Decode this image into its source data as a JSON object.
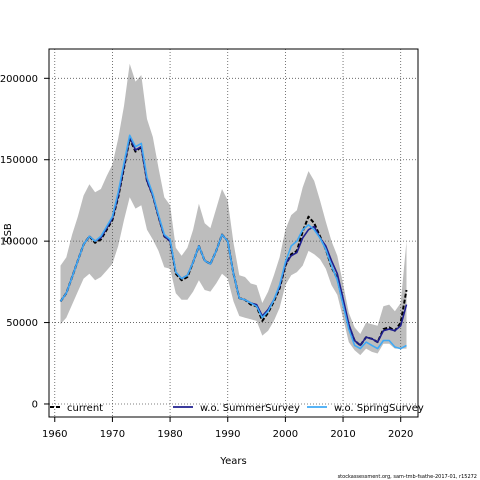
{
  "chart_data": {
    "type": "line",
    "title": "",
    "xlabel": "Years",
    "ylabel": "SSB",
    "xlim": [
      1959,
      2023
    ],
    "ylim": [
      -8000,
      218000
    ],
    "x_ticks": [
      1960,
      1970,
      1980,
      1990,
      2000,
      2010,
      2020
    ],
    "y_ticks": [
      0,
      50000,
      100000,
      150000,
      200000
    ],
    "grid": true,
    "legend_position": "bottom",
    "colors": {
      "current": "#000000",
      "summer": "#1f1f8f",
      "spring": "#3fa9f5",
      "band": "#bdbdbd"
    },
    "series": [
      {
        "name": "current",
        "style": "dashed",
        "x": [
          1961,
          1962,
          1963,
          1964,
          1965,
          1966,
          1967,
          1968,
          1969,
          1970,
          1971,
          1972,
          1973,
          1974,
          1975,
          1976,
          1977,
          1978,
          1979,
          1980,
          1981,
          1982,
          1983,
          1984,
          1985,
          1986,
          1987,
          1988,
          1989,
          1990,
          1991,
          1992,
          1993,
          1994,
          1995,
          1996,
          1997,
          1998,
          1999,
          2000,
          2001,
          2002,
          2003,
          2004,
          2005,
          2006,
          2007,
          2008,
          2009,
          2010,
          2011,
          2012,
          2013,
          2014,
          2015,
          2016,
          2017,
          2018,
          2019,
          2020,
          2021
        ],
        "values": [
          63000,
          68000,
          78000,
          88000,
          98000,
          103000,
          99000,
          101000,
          107000,
          113000,
          127000,
          145000,
          163000,
          155000,
          158000,
          137000,
          128000,
          115000,
          103000,
          100000,
          80000,
          76000,
          78000,
          87000,
          97000,
          88000,
          86000,
          94000,
          104000,
          100000,
          80000,
          65000,
          64000,
          61000,
          60000,
          51000,
          56000,
          63000,
          71000,
          85000,
          92000,
          94000,
          106000,
          115000,
          111000,
          103000,
          95000,
          84000,
          77000,
          62000,
          48000,
          39000,
          36000,
          41000,
          40000,
          38000,
          46000,
          47000,
          45000,
          50000,
          70000
        ]
      },
      {
        "name": "w.o. SummerSurvey",
        "style": "solid",
        "x": [
          1961,
          1962,
          1963,
          1964,
          1965,
          1966,
          1967,
          1968,
          1969,
          1970,
          1971,
          1972,
          1973,
          1974,
          1975,
          1976,
          1977,
          1978,
          1979,
          1980,
          1981,
          1982,
          1983,
          1984,
          1985,
          1986,
          1987,
          1988,
          1989,
          1990,
          1991,
          1992,
          1993,
          1994,
          1995,
          1996,
          1997,
          1998,
          1999,
          2000,
          2001,
          2002,
          2003,
          2004,
          2005,
          2006,
          2007,
          2008,
          2009,
          2010,
          2011,
          2012,
          2013,
          2014,
          2015,
          2016,
          2017,
          2018,
          2019,
          2020,
          2021
        ],
        "values": [
          63000,
          68000,
          78000,
          88000,
          98000,
          103000,
          100000,
          102000,
          108000,
          114000,
          128000,
          146000,
          164000,
          156000,
          158000,
          137000,
          128000,
          115000,
          103000,
          100000,
          81000,
          77000,
          79000,
          87000,
          97000,
          88000,
          86000,
          94000,
          104000,
          100000,
          80000,
          65000,
          64000,
          62000,
          61000,
          54000,
          58000,
          64000,
          72000,
          86000,
          91000,
          93000,
          102000,
          107000,
          109000,
          102000,
          97000,
          88000,
          80000,
          65000,
          49000,
          39000,
          36000,
          41000,
          40000,
          38000,
          45000,
          46000,
          45000,
          48000,
          61000
        ]
      },
      {
        "name": "w.o. SpringSurvey",
        "style": "solid",
        "x": [
          1961,
          1962,
          1963,
          1964,
          1965,
          1966,
          1967,
          1968,
          1969,
          1970,
          1971,
          1972,
          1973,
          1974,
          1975,
          1976,
          1977,
          1978,
          1979,
          1980,
          1981,
          1982,
          1983,
          1984,
          1985,
          1986,
          1987,
          1988,
          1989,
          1990,
          1991,
          1992,
          1993,
          1994,
          1995,
          1996,
          1997,
          1998,
          1999,
          2000,
          2001,
          2002,
          2003,
          2004,
          2005,
          2006,
          2007,
          2008,
          2009,
          2010,
          2011,
          2012,
          2013,
          2014,
          2015,
          2016,
          2017,
          2018,
          2019,
          2020,
          2021
        ],
        "values": [
          63000,
          68000,
          78000,
          88000,
          98000,
          103000,
          100000,
          103000,
          109000,
          115000,
          130000,
          148000,
          165000,
          158000,
          160000,
          139000,
          129000,
          116000,
          104000,
          101000,
          81000,
          77000,
          79000,
          87000,
          97000,
          88000,
          86000,
          94000,
          104000,
          100000,
          80000,
          65000,
          64000,
          62000,
          60000,
          53000,
          57000,
          64000,
          73000,
          87000,
          97000,
          100000,
          107000,
          110000,
          107000,
          102000,
          95000,
          85000,
          76000,
          61000,
          46000,
          36000,
          34000,
          38000,
          36000,
          34000,
          39000,
          39000,
          35000,
          34000,
          36000
        ]
      }
    ],
    "band": {
      "x": [
        1961,
        1962,
        1963,
        1964,
        1965,
        1966,
        1967,
        1968,
        1969,
        1970,
        1971,
        1972,
        1973,
        1974,
        1975,
        1976,
        1977,
        1978,
        1979,
        1980,
        1981,
        1982,
        1983,
        1984,
        1985,
        1986,
        1987,
        1988,
        1989,
        1990,
        1991,
        1992,
        1993,
        1994,
        1995,
        1996,
        1997,
        1998,
        1999,
        2000,
        2001,
        2002,
        2003,
        2004,
        2005,
        2006,
        2007,
        2008,
        2009,
        2010,
        2011,
        2012,
        2013,
        2014,
        2015,
        2016,
        2017,
        2018,
        2019,
        2020,
        2021
      ],
      "lower": [
        49000,
        53000,
        61000,
        69000,
        77000,
        80000,
        76000,
        78000,
        82000,
        86000,
        97000,
        113000,
        127000,
        120000,
        122000,
        107000,
        101000,
        94000,
        84000,
        83000,
        68000,
        64000,
        64000,
        69000,
        76000,
        70000,
        69000,
        74000,
        80000,
        77000,
        63000,
        54000,
        53000,
        52000,
        51000,
        42000,
        45000,
        51000,
        59000,
        73000,
        79000,
        81000,
        85000,
        94000,
        92000,
        89000,
        83000,
        73000,
        67000,
        53000,
        38000,
        33000,
        30000,
        34000,
        32000,
        31000,
        37000,
        37000,
        34000,
        34000,
        34000
      ],
      "upper": [
        85000,
        90000,
        104000,
        115000,
        128000,
        135000,
        130000,
        132000,
        140000,
        147000,
        163000,
        183000,
        209000,
        198000,
        202000,
        175000,
        164000,
        145000,
        127000,
        122000,
        96000,
        91000,
        96000,
        107000,
        123000,
        111000,
        108000,
        120000,
        132000,
        125000,
        99000,
        79000,
        78000,
        74000,
        73000,
        62000,
        69000,
        79000,
        90000,
        107000,
        116000,
        119000,
        133000,
        143000,
        137000,
        125000,
        112000,
        100000,
        91000,
        74000,
        56000,
        47000,
        43000,
        50000,
        49000,
        48000,
        60000,
        61000,
        57000,
        62000,
        100000
      ]
    }
  },
  "footnote": "stockassessment.org, sam-tmb-fsathe-2017-01, r15272"
}
